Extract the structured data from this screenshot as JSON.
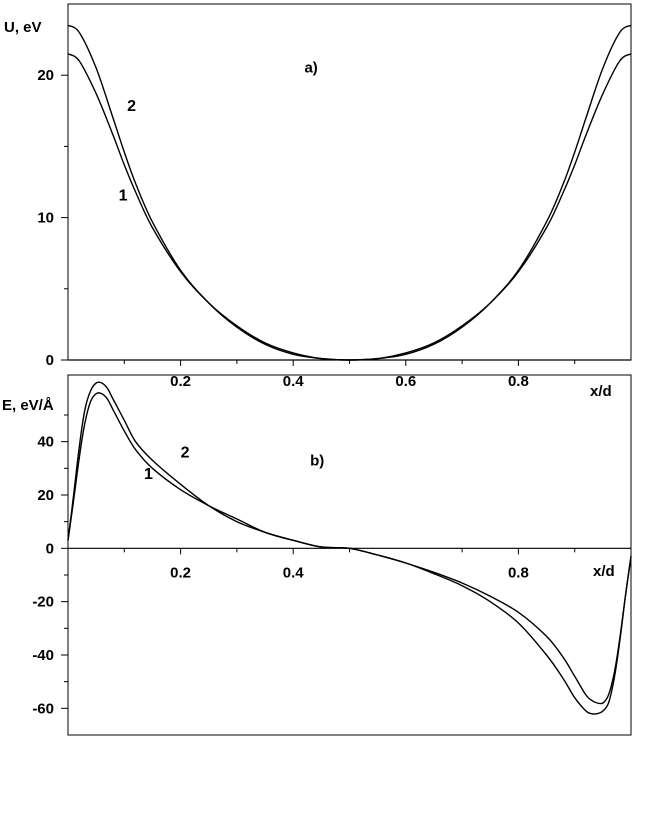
{
  "chart_data": [
    {
      "type": "line",
      "panel": "a)",
      "ylabel": "U, eV",
      "xlabel": "x/d",
      "xlim": [
        0,
        1
      ],
      "ylim": [
        0,
        25
      ],
      "yticks": [
        0,
        10,
        20
      ],
      "xticks": [
        0.2,
        0.4,
        0.6,
        0.8
      ],
      "series": [
        {
          "name": "1",
          "x": [
            0,
            0.02,
            0.05,
            0.08,
            0.1,
            0.12,
            0.15,
            0.2,
            0.25,
            0.3,
            0.35,
            0.4,
            0.45,
            0.5,
            0.55,
            0.6,
            0.65,
            0.7,
            0.75,
            0.8,
            0.85,
            0.88,
            0.9,
            0.92,
            0.95,
            0.98,
            1
          ],
          "values": [
            21.5,
            21,
            18.7,
            15.8,
            13.7,
            11.8,
            9.3,
            6.2,
            4.0,
            2.4,
            1.2,
            0.5,
            0.1,
            0,
            0.1,
            0.5,
            1.2,
            2.4,
            4.0,
            6.2,
            9.3,
            11.8,
            13.7,
            15.8,
            18.7,
            21,
            21.5
          ]
        },
        {
          "name": "2",
          "x": [
            0,
            0.02,
            0.05,
            0.08,
            0.1,
            0.12,
            0.15,
            0.2,
            0.25,
            0.3,
            0.35,
            0.4,
            0.45,
            0.5,
            0.55,
            0.6,
            0.65,
            0.7,
            0.75,
            0.8,
            0.85,
            0.88,
            0.9,
            0.92,
            0.95,
            0.98,
            1
          ],
          "values": [
            23.5,
            23,
            20.5,
            17,
            14.6,
            12.4,
            9.7,
            6.3,
            4.0,
            2.3,
            1.1,
            0.4,
            0.1,
            0,
            0.1,
            0.4,
            1.1,
            2.3,
            4.0,
            6.3,
            9.7,
            12.4,
            14.6,
            17,
            20.5,
            23,
            23.5
          ]
        }
      ],
      "annotations": [
        {
          "text": "1",
          "x": 0.09,
          "y": 11.2
        },
        {
          "text": "2",
          "x": 0.105,
          "y": 17.5
        },
        {
          "text": "a)",
          "x": 0.42,
          "y": 20.2
        }
      ]
    },
    {
      "type": "line",
      "panel": "b)",
      "ylabel": "E, eV/Å",
      "xlabel": "x/d",
      "xlim": [
        0,
        1
      ],
      "ylim": [
        -70,
        65
      ],
      "yticks": [
        -60,
        -40,
        -20,
        0,
        20,
        40
      ],
      "xticks": [
        0.2,
        0.4,
        0.8
      ],
      "series": [
        {
          "name": "1",
          "x": [
            0,
            0.01,
            0.02,
            0.03,
            0.04,
            0.05,
            0.06,
            0.07,
            0.08,
            0.1,
            0.12,
            0.15,
            0.2,
            0.25,
            0.3,
            0.35,
            0.4,
            0.45,
            0.5,
            0.55,
            0.6,
            0.65,
            0.7,
            0.75,
            0.8,
            0.85,
            0.88,
            0.9,
            0.92,
            0.93,
            0.94,
            0.95,
            0.96,
            0.97,
            0.98,
            0.99,
            1
          ],
          "values": [
            3,
            18,
            34,
            47,
            55,
            58,
            58,
            56,
            52,
            44,
            37,
            30,
            22,
            16,
            11,
            6,
            3,
            0.5,
            0,
            -2.5,
            -5.5,
            -9,
            -13,
            -18,
            -24,
            -33,
            -41,
            -48,
            -55,
            -57,
            -58,
            -58,
            -55,
            -47,
            -34,
            -18,
            -3
          ]
        },
        {
          "name": "2",
          "x": [
            0,
            0.01,
            0.02,
            0.03,
            0.04,
            0.05,
            0.06,
            0.07,
            0.08,
            0.1,
            0.12,
            0.15,
            0.2,
            0.25,
            0.3,
            0.35,
            0.4,
            0.45,
            0.5,
            0.55,
            0.6,
            0.65,
            0.7,
            0.75,
            0.8,
            0.85,
            0.88,
            0.9,
            0.92,
            0.93,
            0.94,
            0.95,
            0.96,
            0.97,
            0.98,
            0.99,
            1
          ],
          "values": [
            3,
            20,
            38,
            52,
            59,
            62,
            62,
            60,
            56,
            48,
            40,
            33,
            24,
            16,
            10,
            6,
            3,
            0.5,
            0,
            -2.5,
            -5.5,
            -9.5,
            -14,
            -20,
            -28,
            -40,
            -49,
            -56,
            -61,
            -62,
            -62,
            -61,
            -58,
            -49,
            -35,
            -18,
            -3
          ]
        }
      ],
      "annotations": [
        {
          "text": "1",
          "x": 0.135,
          "y": 26
        },
        {
          "text": "2",
          "x": 0.2,
          "y": 34
        },
        {
          "text": "b)",
          "x": 0.43,
          "y": 31
        }
      ]
    }
  ]
}
